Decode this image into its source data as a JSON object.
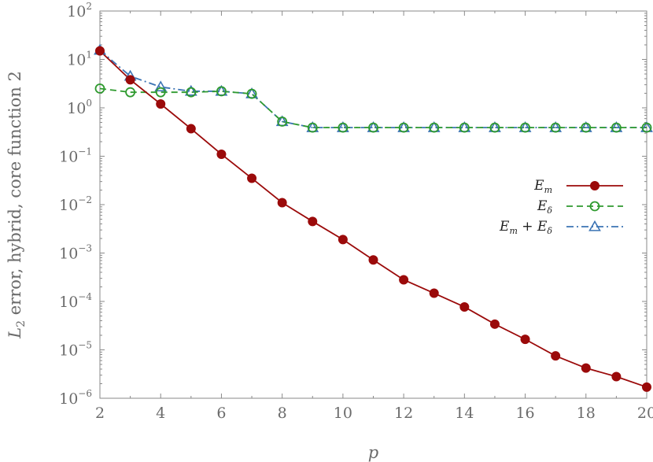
{
  "chart_data": {
    "type": "line",
    "xlabel": "p",
    "ylabel": "L2 error, hybrid, core function 2",
    "ylabel_parts": {
      "main": "L",
      "sub": "2",
      "rest": " error, hybrid, core function 2"
    },
    "x_scale": "linear",
    "y_scale": "log",
    "xlim": [
      2,
      20
    ],
    "ylim": [
      1e-06,
      100
    ],
    "x_ticks": [
      2,
      4,
      6,
      8,
      10,
      12,
      14,
      16,
      18,
      20
    ],
    "x_tick_labels": [
      "2",
      "4",
      "6",
      "8",
      "10",
      "12",
      "14",
      "16",
      "18",
      "20"
    ],
    "y_ticks": [
      {
        "value": 100,
        "base": "10",
        "exp": "2"
      },
      {
        "value": 10,
        "base": "10",
        "exp": "1"
      },
      {
        "value": 1,
        "base": "10",
        "exp": "0"
      },
      {
        "value": 0.1,
        "base": "10",
        "exp": "−1"
      },
      {
        "value": 0.01,
        "base": "10",
        "exp": "−2"
      },
      {
        "value": 0.001,
        "base": "10",
        "exp": "−3"
      },
      {
        "value": 0.0001,
        "base": "10",
        "exp": "−4"
      },
      {
        "value": 1e-05,
        "base": "10",
        "exp": "−5"
      },
      {
        "value": 1e-06,
        "base": "10",
        "exp": "−6"
      }
    ],
    "grid": false,
    "legend_position": "center-right",
    "x": [
      2,
      3,
      4,
      5,
      6,
      7,
      8,
      9,
      10,
      11,
      12,
      13,
      14,
      15,
      16,
      17,
      18,
      19,
      20
    ],
    "series": [
      {
        "name": "E_m",
        "legend": {
          "main": "E",
          "sub": "m",
          "tail": ""
        },
        "color": "#9b0a0a",
        "dash": "",
        "marker": "filled-circle",
        "values": [
          15,
          3.8,
          1.2,
          0.37,
          0.11,
          0.035,
          0.011,
          0.0045,
          0.0019,
          0.00072,
          0.00028,
          0.000148,
          7.7e-05,
          3.4e-05,
          1.65e-05,
          7.5e-06,
          4.2e-06,
          2.8e-06,
          1.7e-06
        ]
      },
      {
        "name": "E_δ",
        "legend": {
          "main": "E",
          "sub": "δ",
          "tail": ""
        },
        "color": "#2e9a2e",
        "dash": "8,5",
        "marker": "open-circle",
        "values": [
          2.5,
          2.1,
          2.1,
          2.1,
          2.2,
          1.95,
          0.52,
          0.39,
          0.39,
          0.39,
          0.39,
          0.39,
          0.39,
          0.39,
          0.39,
          0.39,
          0.39,
          0.39,
          0.39
        ]
      },
      {
        "name": "E_m + E_δ",
        "legend": {
          "main": "E",
          "sub": "m",
          "tail": " + E",
          "sub2": "δ"
        },
        "color": "#3c74b4",
        "dash": "9,4,2,4",
        "marker": "open-triangle",
        "values": [
          15.5,
          4.5,
          2.7,
          2.2,
          2.2,
          1.95,
          0.52,
          0.39,
          0.39,
          0.39,
          0.39,
          0.39,
          0.39,
          0.39,
          0.39,
          0.39,
          0.39,
          0.39,
          0.39
        ]
      }
    ]
  }
}
